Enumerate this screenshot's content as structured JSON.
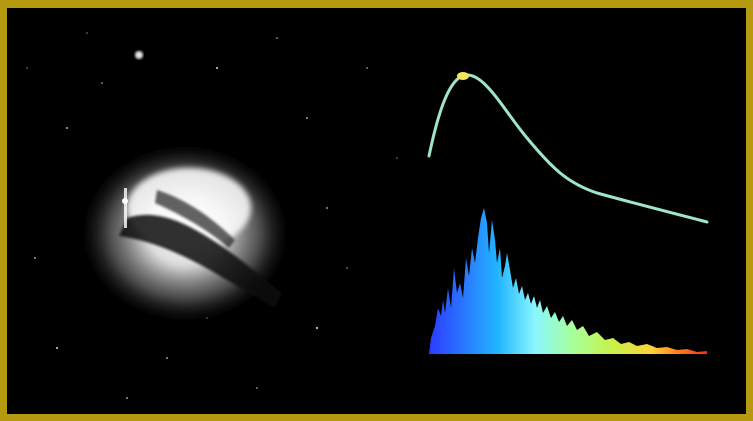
{
  "image": {
    "kind": "photograph-with-spectrum-overlay",
    "background_color": "#000000",
    "frame_color": "#b59a10",
    "left_panel": {
      "subject": "galaxy-with-dust-lane",
      "tone": "grayscale"
    },
    "right_panel": {
      "elements": [
        "smooth-spectrum-curve",
        "rainbow-emission-spectrum"
      ],
      "curve_color": "#9fe6c8",
      "peak_marker_color": "#f2e35a",
      "spectrum_gradient": [
        "#2a3cff",
        "#22a6ff",
        "#6af0ff",
        "#b8ff8a",
        "#ffe84a",
        "#ff7a1e",
        "#ff2a1a"
      ]
    }
  }
}
